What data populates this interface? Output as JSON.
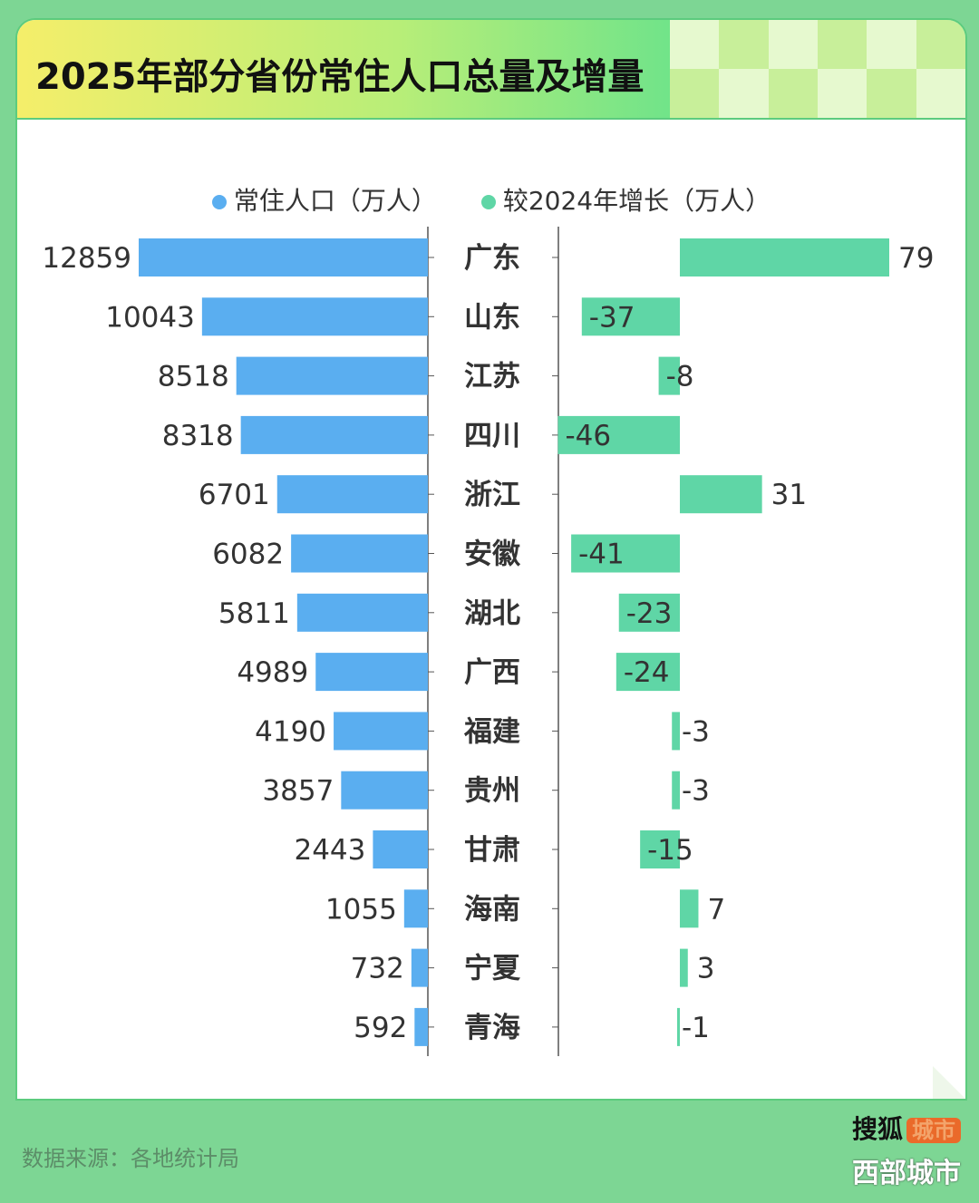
{
  "title": "2025年部分省份常住人口总量及增量",
  "footer": {
    "source": "数据来源：各地统计局",
    "logo_text": "搜狐",
    "logo_badge": "城市",
    "watermark": "西部城市"
  },
  "colors": {
    "population": "#5aaef0",
    "growth": "#5fd6a6",
    "background": "#7dd694"
  },
  "chart_data": {
    "type": "bar",
    "orientation": "horizontal",
    "categories": [
      "广东",
      "山东",
      "江苏",
      "四川",
      "浙江",
      "安徽",
      "湖北",
      "广西",
      "福建",
      "贵州",
      "甘肃",
      "海南",
      "宁夏",
      "青海"
    ],
    "series": [
      {
        "name": "常住人口（万人）",
        "values": [
          12859,
          10043,
          8518,
          8318,
          6701,
          6082,
          5811,
          4989,
          4190,
          3857,
          2443,
          1055,
          732,
          592
        ]
      },
      {
        "name": "较2024年增长（万人）",
        "values": [
          79,
          -37,
          -8,
          -46,
          31,
          -41,
          -23,
          -24,
          -3,
          -3,
          -15,
          7,
          3,
          -1
        ]
      }
    ],
    "legend": "top",
    "grid": false
  }
}
